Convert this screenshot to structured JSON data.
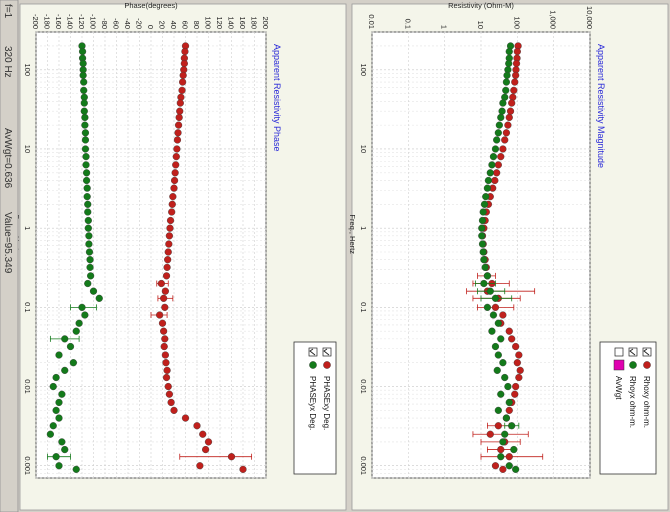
{
  "status_bar": {
    "fields": [
      "f=1",
      "320  Hz",
      "AvWgt=0.636",
      "Value=95.349"
    ]
  },
  "legend_icons": {
    "checkbox": "checkbox-icon",
    "marker": "circle-marker-icon"
  },
  "colors": {
    "red": "#c0201c",
    "green": "#137a1a",
    "avwgt": "#e000b0",
    "title_blue": "#2a2ad8",
    "panel_bg": "#f2f4e4"
  },
  "chart_data": [
    {
      "type": "scatter",
      "title": "Apparent Resistivity Magnitude",
      "xlabel": "Freq., Hertz",
      "ylabel": "Resistivity (Ohm-M)",
      "x_scale": "log",
      "y_scale": "log",
      "xlim": [
        300,
        0.0007
      ],
      "ylim": [
        0.01,
        10000
      ],
      "x_ticks": [
        100,
        10,
        1,
        0.1,
        0.01,
        0.001
      ],
      "x_tick_labels": [
        "100",
        "10",
        "1",
        "0.1",
        "0.01",
        "0.001"
      ],
      "y_ticks": [
        10000,
        1000,
        100,
        10,
        1,
        0.1,
        0.01
      ],
      "y_tick_labels": [
        "10,000",
        "1,000",
        "100",
        "10",
        "1",
        "0.1",
        "0.01"
      ],
      "grid": true,
      "legend": [
        "Rhoxy ohm-m.",
        "Rhoyx ohm-m.",
        "AvWgt"
      ],
      "legend_placement": "top-right",
      "series": [
        {
          "name": "Rhoxy ohm-m.",
          "color": "red",
          "x": [
            200,
            170,
            140,
            120,
            100,
            85,
            70,
            55,
            45,
            38,
            30,
            25,
            20,
            16,
            13,
            10,
            8,
            6.3,
            5,
            4,
            3.2,
            2.5,
            2,
            1.6,
            1.25,
            1,
            0.8,
            0.63,
            0.5,
            0.4,
            0.32,
            0.25,
            0.2,
            0.16,
            0.13,
            0.1,
            0.08,
            0.063,
            0.05,
            0.04,
            0.032,
            0.025,
            0.02,
            0.016,
            0.013,
            0.01,
            0.008,
            0.0063,
            0.005,
            0.004,
            0.0032,
            0.0025,
            0.002,
            0.0016,
            0.0013,
            0.001,
            0.0009
          ],
          "y": [
            105,
            100,
            98,
            95,
            92,
            90,
            85,
            80,
            75,
            70,
            65,
            60,
            55,
            50,
            45,
            40,
            35,
            30,
            27,
            24,
            21,
            18,
            16,
            14,
            13,
            12,
            11,
            11.5,
            12,
            13,
            14,
            15,
            20,
            15,
            30,
            25,
            40,
            35,
            60,
            70,
            90,
            110,
            100,
            120,
            110,
            90,
            85,
            70,
            60,
            50,
            30,
            18,
            45,
            35,
            60,
            25,
            40
          ],
          "err_lo": [
            null,
            null,
            null,
            null,
            null,
            null,
            null,
            null,
            null,
            null,
            null,
            null,
            null,
            null,
            null,
            null,
            null,
            null,
            null,
            null,
            null,
            null,
            null,
            null,
            null,
            null,
            null,
            null,
            null,
            null,
            null,
            8,
            6,
            4,
            6,
            8,
            null,
            null,
            null,
            null,
            null,
            null,
            null,
            null,
            null,
            null,
            null,
            null,
            null,
            null,
            15,
            6,
            10,
            15,
            10,
            null,
            null
          ],
          "err_hi": [
            null,
            null,
            null,
            null,
            null,
            null,
            null,
            null,
            null,
            null,
            null,
            null,
            null,
            null,
            null,
            null,
            null,
            null,
            null,
            null,
            null,
            null,
            null,
            null,
            null,
            null,
            null,
            null,
            null,
            null,
            null,
            25,
            60,
            300,
            120,
            80,
            null,
            null,
            null,
            null,
            null,
            null,
            null,
            null,
            null,
            null,
            null,
            null,
            null,
            null,
            60,
            200,
            120,
            80,
            500,
            null,
            null
          ]
        },
        {
          "name": "Rhoyx ohm-m.",
          "color": "green",
          "x": [
            200,
            170,
            140,
            120,
            100,
            85,
            70,
            55,
            45,
            38,
            30,
            25,
            20,
            16,
            13,
            10,
            8,
            6.3,
            5,
            4,
            3.2,
            2.5,
            2,
            1.6,
            1.25,
            1,
            0.8,
            0.63,
            0.5,
            0.4,
            0.32,
            0.25,
            0.2,
            0.16,
            0.13,
            0.1,
            0.08,
            0.063,
            0.05,
            0.04,
            0.032,
            0.025,
            0.02,
            0.016,
            0.013,
            0.01,
            0.008,
            0.0063,
            0.005,
            0.004,
            0.0032,
            0.0025,
            0.002,
            0.0016,
            0.0013,
            0.001,
            0.0009
          ],
          "y": [
            65,
            60,
            60,
            58,
            55,
            52,
            50,
            48,
            45,
            40,
            38,
            35,
            32,
            30,
            27,
            25,
            22,
            20,
            18,
            16,
            15,
            13.5,
            12.5,
            11.5,
            11,
            10.5,
            10.5,
            11,
            11.5,
            12,
            13,
            15,
            12,
            18,
            25,
            15,
            22,
            30,
            20,
            35,
            25,
            30,
            40,
            28,
            45,
            55,
            35,
            60,
            30,
            50,
            70,
            45,
            40,
            80,
            35,
            60,
            90
          ],
          "err_lo": [
            null,
            null,
            null,
            null,
            null,
            null,
            null,
            null,
            null,
            null,
            null,
            null,
            null,
            null,
            null,
            null,
            null,
            null,
            null,
            null,
            null,
            null,
            null,
            null,
            null,
            null,
            null,
            null,
            null,
            null,
            null,
            null,
            7,
            8,
            10,
            null,
            null,
            null,
            null,
            null,
            null,
            null,
            null,
            null,
            null,
            null,
            null,
            null,
            null,
            null,
            45,
            null,
            null,
            null,
            null,
            null,
            null
          ],
          "err_hi": [
            null,
            null,
            null,
            null,
            null,
            null,
            null,
            null,
            null,
            null,
            null,
            null,
            null,
            null,
            null,
            null,
            null,
            null,
            null,
            null,
            null,
            null,
            null,
            null,
            null,
            null,
            null,
            null,
            null,
            null,
            null,
            null,
            25,
            45,
            70,
            null,
            null,
            null,
            null,
            null,
            null,
            null,
            null,
            null,
            null,
            null,
            null,
            null,
            null,
            null,
            110,
            null,
            null,
            null,
            null,
            null,
            null
          ]
        }
      ]
    },
    {
      "type": "scatter",
      "title": "Apparent Resistivity Phase",
      "xlabel": "Freq., Hertz",
      "ylabel": "Phase(degrees)",
      "x_scale": "log",
      "xlim": [
        300,
        0.0007
      ],
      "ylim": [
        -200,
        200
      ],
      "x_ticks": [
        100,
        10,
        1,
        0.1,
        0.01,
        0.001
      ],
      "x_tick_labels": [
        "100",
        "10",
        "1",
        "0.1",
        "0.01",
        "0.001"
      ],
      "y_ticks": [
        200,
        180,
        160,
        140,
        120,
        100,
        80,
        60,
        40,
        20,
        0,
        -20,
        -40,
        -60,
        -80,
        -100,
        -120,
        -140,
        -160,
        -180,
        -200
      ],
      "y_tick_labels": [
        "200",
        "180",
        "160",
        "140",
        "120",
        "100",
        "80",
        "60",
        "40",
        "20",
        "0",
        "-20",
        "-40",
        "-60",
        "-80",
        "-100",
        "-120",
        "-140",
        "-160",
        "-180",
        "-200"
      ],
      "grid": true,
      "legend": [
        "PHASExy Deg.",
        "PHASEyx Deg."
      ],
      "legend_placement": "top-right",
      "series": [
        {
          "name": "PHASExy Deg.",
          "color": "red",
          "x": [
            200,
            170,
            140,
            120,
            100,
            85,
            70,
            55,
            45,
            38,
            30,
            25,
            20,
            16,
            13,
            10,
            8,
            6.3,
            5,
            4,
            3.2,
            2.5,
            2,
            1.6,
            1.25,
            1,
            0.8,
            0.63,
            0.5,
            0.4,
            0.32,
            0.25,
            0.2,
            0.16,
            0.13,
            0.1,
            0.08,
            0.063,
            0.05,
            0.04,
            0.032,
            0.025,
            0.02,
            0.016,
            0.013,
            0.01,
            0.008,
            0.0063,
            0.005,
            0.004,
            0.0032,
            0.0025,
            0.002,
            0.0016,
            0.0013,
            0.001,
            0.0009
          ],
          "y": [
            60,
            59,
            58,
            58,
            57,
            56,
            55,
            54,
            52,
            51,
            50,
            49,
            48,
            47,
            46,
            45,
            44,
            43,
            42,
            41,
            40,
            38,
            37,
            36,
            34,
            33,
            32,
            31,
            30,
            29,
            28,
            27,
            18,
            25,
            22,
            24,
            15,
            20,
            22,
            24,
            23,
            25,
            26,
            28,
            27,
            30,
            32,
            35,
            40,
            60,
            80,
            90,
            100,
            95,
            140,
            85,
            160
          ],
          "err_lo": [
            null,
            null,
            null,
            null,
            null,
            null,
            null,
            null,
            null,
            null,
            null,
            null,
            null,
            null,
            null,
            null,
            null,
            null,
            null,
            null,
            null,
            null,
            null,
            null,
            null,
            null,
            null,
            null,
            null,
            null,
            null,
            null,
            10,
            null,
            12,
            null,
            0,
            null,
            null,
            null,
            null,
            null,
            null,
            null,
            null,
            null,
            null,
            null,
            null,
            null,
            null,
            null,
            null,
            null,
            50,
            null,
            null
          ],
          "err_hi": [
            null,
            null,
            null,
            null,
            null,
            null,
            null,
            null,
            null,
            null,
            null,
            null,
            null,
            null,
            null,
            null,
            null,
            null,
            null,
            null,
            null,
            null,
            null,
            null,
            null,
            null,
            null,
            null,
            null,
            null,
            null,
            null,
            30,
            null,
            38,
            null,
            28,
            null,
            null,
            null,
            null,
            null,
            null,
            null,
            null,
            null,
            null,
            null,
            null,
            null,
            null,
            null,
            null,
            null,
            175,
            null,
            null
          ]
        },
        {
          "name": "PHASEyx Deg.",
          "color": "green",
          "x": [
            200,
            170,
            140,
            120,
            100,
            85,
            70,
            55,
            45,
            38,
            30,
            25,
            20,
            16,
            13,
            10,
            8,
            6.3,
            5,
            4,
            3.2,
            2.5,
            2,
            1.6,
            1.25,
            1,
            0.8,
            0.63,
            0.5,
            0.4,
            0.32,
            0.25,
            0.2,
            0.16,
            0.13,
            0.1,
            0.08,
            0.063,
            0.05,
            0.04,
            0.032,
            0.025,
            0.02,
            0.016,
            0.013,
            0.01,
            0.008,
            0.0063,
            0.005,
            0.004,
            0.0032,
            0.0025,
            0.002,
            0.0016,
            0.0013,
            0.001,
            0.0009
          ],
          "y": [
            -120,
            -119,
            -119,
            -118,
            -118,
            -118,
            -117,
            -117,
            -116,
            -116,
            -116,
            -115,
            -115,
            -114,
            -114,
            -114,
            -113,
            -113,
            -112,
            -112,
            -111,
            -111,
            -110,
            -110,
            -109,
            -109,
            -108,
            -108,
            -107,
            -106,
            -106,
            -105,
            -110,
            -100,
            -90,
            -120,
            -115,
            -125,
            -130,
            -150,
            -140,
            -160,
            -135,
            -150,
            -165,
            -170,
            -155,
            -160,
            -165,
            -160,
            -170,
            -175,
            -155,
            -150,
            -165,
            -160,
            -130
          ],
          "err_lo": [
            null,
            null,
            null,
            null,
            null,
            null,
            null,
            null,
            null,
            null,
            null,
            null,
            null,
            null,
            null,
            null,
            null,
            null,
            null,
            null,
            null,
            null,
            null,
            null,
            null,
            null,
            null,
            null,
            null,
            null,
            null,
            null,
            null,
            null,
            null,
            -140,
            null,
            null,
            null,
            -175,
            null,
            null,
            null,
            null,
            null,
            null,
            null,
            null,
            null,
            null,
            null,
            null,
            null,
            null,
            -180,
            null,
            null
          ],
          "err_hi": [
            null,
            null,
            null,
            null,
            null,
            null,
            null,
            null,
            null,
            null,
            null,
            null,
            null,
            null,
            null,
            null,
            null,
            null,
            null,
            null,
            null,
            null,
            null,
            null,
            null,
            null,
            null,
            null,
            null,
            null,
            null,
            null,
            null,
            null,
            null,
            -95,
            null,
            null,
            null,
            -125,
            null,
            null,
            null,
            null,
            null,
            null,
            null,
            null,
            null,
            null,
            null,
            null,
            null,
            null,
            -140,
            null,
            null
          ]
        }
      ]
    }
  ]
}
